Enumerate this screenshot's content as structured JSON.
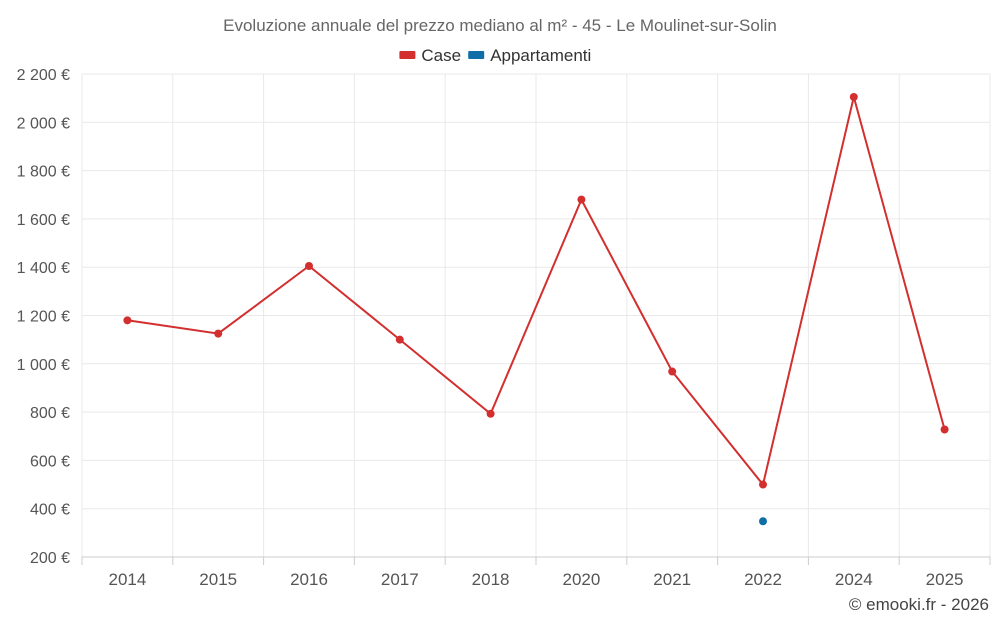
{
  "chart_data": {
    "type": "line",
    "title": "Evoluzione annuale del prezzo mediano al m² - 45 - Le Moulinet-sur-Solin",
    "categories": [
      "2014",
      "2015",
      "2016",
      "2017",
      "2018",
      "2020",
      "2021",
      "2022",
      "2024",
      "2025"
    ],
    "series": [
      {
        "name": "Case",
        "color": "#d32f2f",
        "values": [
          1180,
          1125,
          1405,
          1100,
          793,
          1680,
          968,
          500,
          2105,
          728
        ]
      },
      {
        "name": "Appartamenti",
        "color": "#0f6ea8",
        "values": [
          null,
          null,
          null,
          null,
          null,
          null,
          null,
          348,
          null,
          null
        ]
      }
    ],
    "ylim": [
      200,
      2200
    ],
    "yticks": [
      200,
      400,
      600,
      800,
      1000,
      1200,
      1400,
      1600,
      1800,
      2000,
      2200
    ],
    "ytick_labels": [
      "200 €",
      "400 €",
      "600 €",
      "800 €",
      "1 000 €",
      "1 200 €",
      "1 400 €",
      "1 600 €",
      "1 800 €",
      "2 000 €",
      "2 200 €"
    ],
    "grid": true,
    "legend_position": "top-center"
  },
  "credit": "© emooki.fr - 2026"
}
